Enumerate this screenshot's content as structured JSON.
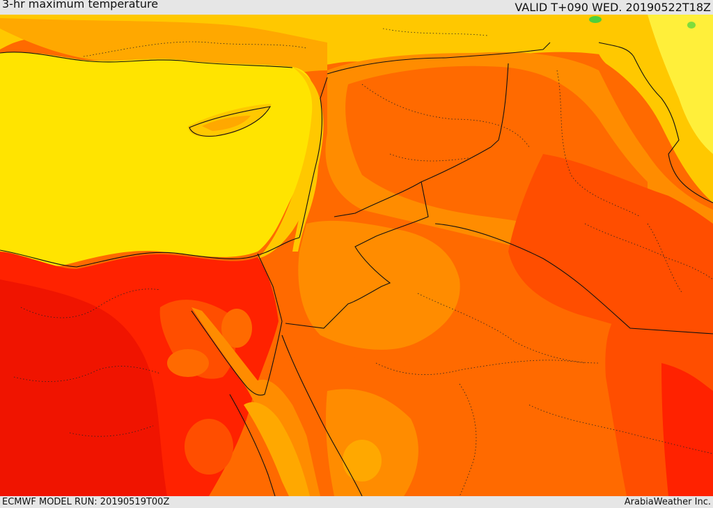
{
  "header": {
    "title": "3-hr maximum temperature",
    "valid_time": "VALID T+090 WED. 20190522T18Z"
  },
  "footer": {
    "model_run": "ECMWF MODEL RUN: 20190519T00Z",
    "credit": "ArabiaWeather Inc."
  },
  "map": {
    "colors": {
      "sea_yellow": "#ffe400",
      "light_yellow": "#ffef3a",
      "yellow_orange": "#ffc800",
      "amber": "#ffa800",
      "orange": "#ff8c00",
      "dark_orange": "#ff6a00",
      "orange_red": "#ff4e00",
      "red": "#ff2200",
      "deep_red": "#f01400",
      "green": "#4ecf3c",
      "border": "#111111"
    }
  }
}
